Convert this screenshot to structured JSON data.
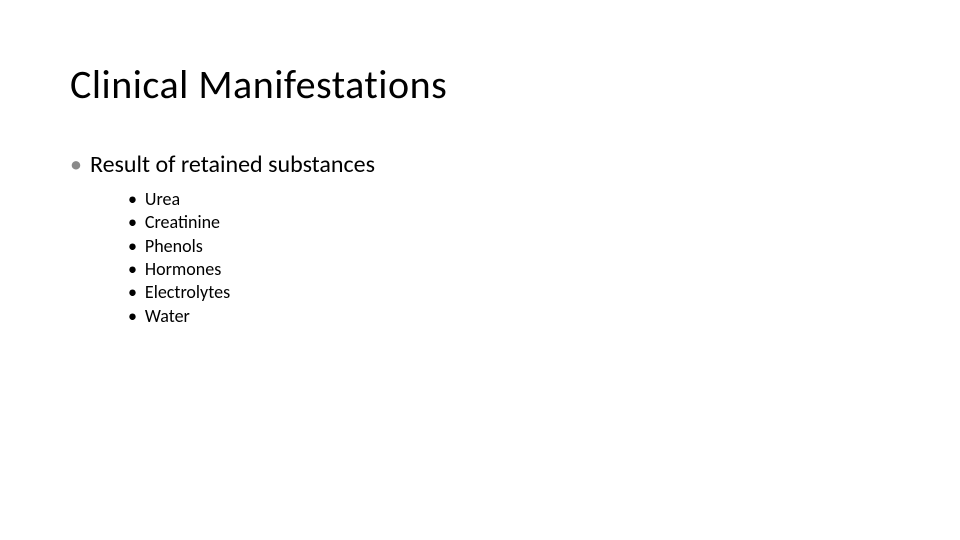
{
  "slide": {
    "title": "Clinical Manifestations",
    "background_color": "#ffffff",
    "title_fontsize": 40,
    "title_color": "#000000",
    "bullet_level1": {
      "marker": "•",
      "marker_color": "#8a8a8a",
      "text_fontsize": 24,
      "text_color": "#000000",
      "items": [
        {
          "text": "Result of retained substances",
          "children": [
            "Urea",
            "Creatinine",
            "Phenols",
            "Hormones",
            "Electrolytes",
            "Water"
          ]
        }
      ]
    },
    "bullet_level2": {
      "marker": "•",
      "marker_color": "#000000",
      "text_fontsize": 18,
      "text_color": "#000000"
    }
  }
}
